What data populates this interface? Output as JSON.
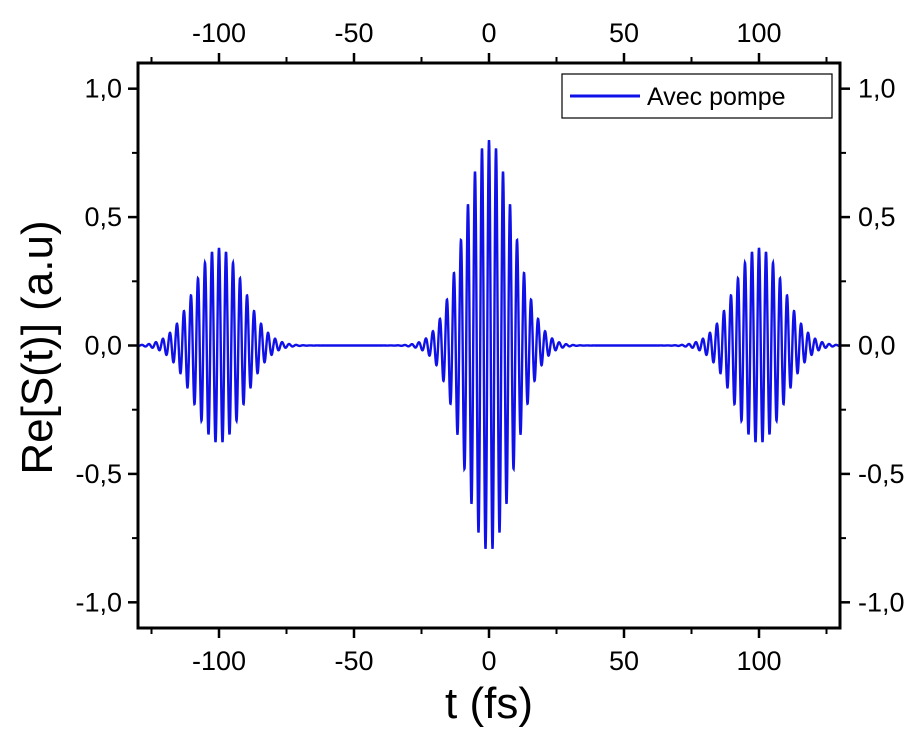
{
  "chart_data": {
    "type": "line",
    "title": "",
    "xlabel": "t (fs)",
    "ylabel": "Re[S(t)] (a.u)",
    "xlim": [
      -130,
      130
    ],
    "ylim": [
      -1.1,
      1.1
    ],
    "x_ticks": [
      -100,
      -50,
      0,
      50,
      100
    ],
    "x_tick_labels": [
      "-100",
      "-50",
      "0",
      "50",
      "100"
    ],
    "x_top_tick_labels": [
      "-100",
      "-50",
      "0",
      "50",
      "100"
    ],
    "y_ticks": [
      -1.0,
      -0.5,
      0.0,
      0.5,
      1.0
    ],
    "y_tick_labels": [
      "-1,0",
      "-0,5",
      "0,0",
      "0,5",
      "1,0"
    ],
    "y_right_tick_labels": [
      "-1,0",
      "-0,5",
      "0,0",
      "0,5",
      "1,0"
    ],
    "grid": false,
    "legend_position": "top-right",
    "series": [
      {
        "name": "Avec pompe",
        "color": "#1010e8",
        "description_points": [
          {
            "x": -100,
            "y": 0.38
          },
          {
            "x": 0,
            "y": 0.8
          },
          {
            "x": 100,
            "y": 0.38
          }
        ],
        "envelope": {
          "packets": [
            {
              "center": -100,
              "amplitude": 0.38,
              "width_fs": 9
            },
            {
              "center": 0,
              "amplitude": 0.8,
              "width_fs": 9
            },
            {
              "center": 100,
              "amplitude": 0.38,
              "width_fs": 9
            }
          ],
          "carrier_period_fs": 2.6
        }
      }
    ]
  }
}
